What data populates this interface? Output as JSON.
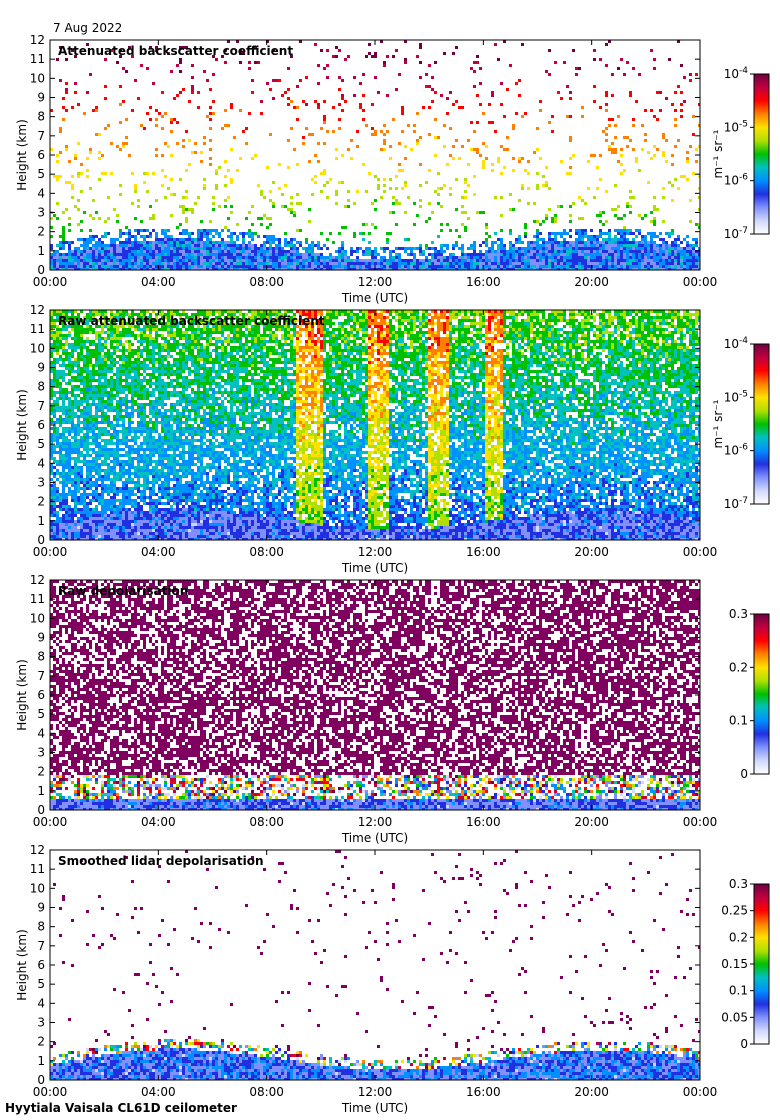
{
  "date_label": "7 Aug 2022",
  "site_label": "Hyytiala Vaisala CL61D ceilometer",
  "chart_data": [
    {
      "type": "heatmap",
      "title": "Attenuated backscatter coefficient",
      "xlabel": "Time (UTC)",
      "ylabel": "Height (km)",
      "x_ticks": [
        "00:00",
        "04:00",
        "08:00",
        "12:00",
        "16:00",
        "20:00",
        "00:00"
      ],
      "y_ticks": [
        "0",
        "1",
        "2",
        "3",
        "4",
        "5",
        "6",
        "7",
        "8",
        "9",
        "10",
        "11",
        "12"
      ],
      "ylim": [
        0,
        12
      ],
      "colorbar": {
        "scale": "log",
        "unit": "m⁻¹ sr⁻¹",
        "range": [
          1e-07,
          0.0001
        ],
        "ticks": [
          {
            "base": "10",
            "exp": "-4"
          },
          {
            "base": "10",
            "exp": "-5"
          },
          {
            "base": "10",
            "exp": "-6"
          },
          {
            "base": "10",
            "exp": "-7"
          }
        ]
      },
      "colors": [
        "#ffffff",
        "#d0d8ff",
        "#8090ff",
        "#2030e0",
        "#0090ff",
        "#00c0c0",
        "#00c000",
        "#b0e000",
        "#ffe000",
        "#ff8000",
        "#ff0000",
        "#c00040",
        "#700040"
      ]
    },
    {
      "type": "heatmap",
      "title": "Raw attenuated backscatter coefficient",
      "xlabel": "Time (UTC)",
      "ylabel": "Height (km)",
      "x_ticks": [
        "00:00",
        "04:00",
        "08:00",
        "12:00",
        "16:00",
        "20:00",
        "00:00"
      ],
      "y_ticks": [
        "0",
        "1",
        "2",
        "3",
        "4",
        "5",
        "6",
        "7",
        "8",
        "9",
        "10",
        "11",
        "12"
      ],
      "ylim": [
        0,
        12
      ],
      "colorbar": {
        "scale": "log",
        "unit": "m⁻¹ sr⁻¹",
        "range": [
          1e-07,
          0.0001
        ],
        "ticks": [
          {
            "base": "10",
            "exp": "-4"
          },
          {
            "base": "10",
            "exp": "-5"
          },
          {
            "base": "10",
            "exp": "-6"
          },
          {
            "base": "10",
            "exp": "-7"
          }
        ]
      },
      "colors": [
        "#ffffff",
        "#d0d8ff",
        "#8090ff",
        "#2030e0",
        "#0090ff",
        "#00c0c0",
        "#00c000",
        "#b0e000",
        "#ffe000",
        "#ff8000",
        "#ff0000",
        "#c00040",
        "#700040"
      ]
    },
    {
      "type": "heatmap",
      "title": "Raw depolarisation",
      "xlabel": "Time (UTC)",
      "ylabel": "Height (km)",
      "x_ticks": [
        "00:00",
        "04:00",
        "08:00",
        "12:00",
        "16:00",
        "20:00",
        "00:00"
      ],
      "y_ticks": [
        "0",
        "1",
        "2",
        "3",
        "4",
        "5",
        "6",
        "7",
        "8",
        "9",
        "10",
        "11",
        "12"
      ],
      "ylim": [
        0,
        12
      ],
      "colorbar": {
        "scale": "linear",
        "unit": "",
        "range": [
          0,
          0.3
        ],
        "ticks": [
          {
            "base": "0.3"
          },
          {
            "base": "0.2"
          },
          {
            "base": "0.1"
          },
          {
            "base": "0"
          }
        ]
      },
      "colors": [
        "#ffffff",
        "#d0d8ff",
        "#8090ff",
        "#2030e0",
        "#0090ff",
        "#00c0c0",
        "#00c000",
        "#b0e000",
        "#ffe000",
        "#ff8000",
        "#ff0000",
        "#c00040",
        "#700040"
      ]
    },
    {
      "type": "heatmap",
      "title": "Smoothed lidar depolarisation",
      "xlabel": "Time (UTC)",
      "ylabel": "Height (km)",
      "x_ticks": [
        "00:00",
        "04:00",
        "08:00",
        "12:00",
        "16:00",
        "20:00",
        "00:00"
      ],
      "y_ticks": [
        "0",
        "1",
        "2",
        "3",
        "4",
        "5",
        "6",
        "7",
        "8",
        "9",
        "10",
        "11",
        "12"
      ],
      "ylim": [
        0,
        12
      ],
      "colorbar": {
        "scale": "linear",
        "unit": "",
        "range": [
          0,
          0.3
        ],
        "ticks": [
          {
            "base": "0.3"
          },
          {
            "base": "0.25"
          },
          {
            "base": "0.2"
          },
          {
            "base": "0.15"
          },
          {
            "base": "0.1"
          },
          {
            "base": "0.05"
          },
          {
            "base": "0"
          }
        ]
      },
      "colors": [
        "#ffffff",
        "#d0d8ff",
        "#8090ff",
        "#2030e0",
        "#0090ff",
        "#00c0c0",
        "#00c000",
        "#b0e000",
        "#ffe000",
        "#ff8000",
        "#ff0000",
        "#c00040",
        "#700040"
      ]
    }
  ]
}
